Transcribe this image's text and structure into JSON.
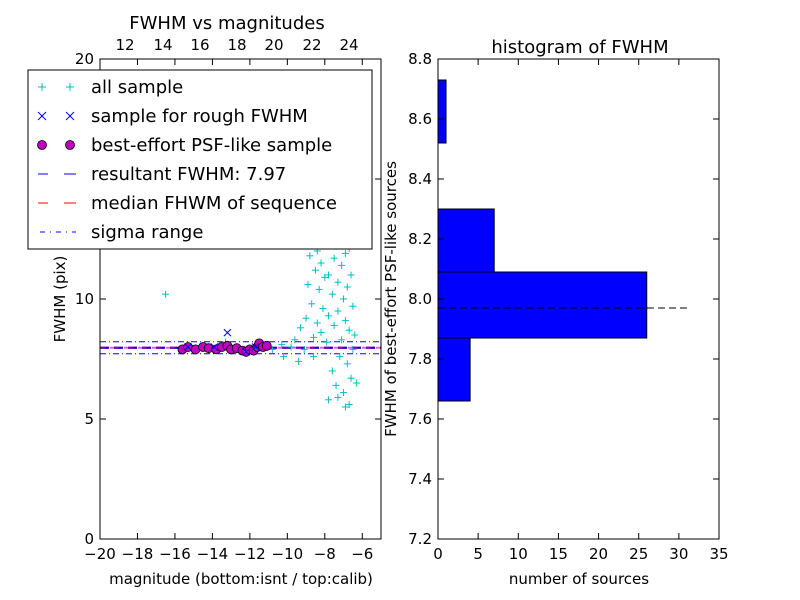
{
  "chart_data": [
    {
      "type": "scatter",
      "title": "FWHM vs magnitudes",
      "xlabel": "magnitude (bottom:isnt / top:calib)",
      "ylabel": "FWHM (pix)",
      "xlim": [
        -20,
        -5
      ],
      "ylim": [
        0,
        20
      ],
      "x_ticks": [
        "−20",
        "−18",
        "−16",
        "−14",
        "−12",
        "−10",
        "−8",
        "−6"
      ],
      "y_ticks": [
        "0",
        "5",
        "10",
        "15",
        "20"
      ],
      "top_axis_ticks": [
        "12",
        "14",
        "16",
        "18",
        "20",
        "22",
        "24"
      ],
      "legend": {
        "placement": "upper-left",
        "entries": [
          {
            "label": "all sample",
            "color": "#00bfbf",
            "marker": "plus"
          },
          {
            "label": "sample for rough FWHM",
            "color": "#0000ff",
            "marker": "x"
          },
          {
            "label": "best-effort PSF-like sample",
            "color": "#bf00bf",
            "marker": "circle"
          },
          {
            "label": "resultant FWHM: 7.97",
            "color": "#0000ff",
            "marker": "dashed"
          },
          {
            "label": "median FHWM of sequence",
            "color": "#ff0000",
            "marker": "dashed"
          },
          {
            "label": "sigma range",
            "color": "#0000ff",
            "marker": "dashdot"
          }
        ]
      },
      "lines": {
        "resultant_fwhm": 7.97,
        "median_fwhm": 7.97,
        "sigma_low": 7.72,
        "sigma_high": 8.22
      },
      "series": [
        {
          "name": "all sample",
          "points": [
            [
              -16.5,
              10.2
            ],
            [
              -15.4,
              8.0
            ],
            [
              -14.5,
              8.0
            ],
            [
              -13.3,
              8.2
            ],
            [
              -12.6,
              7.9
            ],
            [
              -11.9,
              7.9
            ],
            [
              -11.4,
              8.0
            ],
            [
              -10.8,
              7.9
            ],
            [
              -10.3,
              8.1
            ],
            [
              -9.8,
              8.0
            ],
            [
              -10.2,
              7.6
            ],
            [
              -9.6,
              8.3
            ],
            [
              -9.3,
              8.8
            ],
            [
              -9.1,
              7.9
            ],
            [
              -9.0,
              9.2
            ],
            [
              -8.9,
              10.6
            ],
            [
              -8.8,
              11.8
            ],
            [
              -8.7,
              12.6
            ],
            [
              -8.7,
              9.8
            ],
            [
              -8.6,
              8.4
            ],
            [
              -8.5,
              11.2
            ],
            [
              -8.5,
              13.4
            ],
            [
              -8.4,
              12.0
            ],
            [
              -8.4,
              9.0
            ],
            [
              -8.3,
              10.4
            ],
            [
              -8.3,
              12.9
            ],
            [
              -8.2,
              8.6
            ],
            [
              -8.2,
              11.5
            ],
            [
              -8.1,
              13.2
            ],
            [
              -8.1,
              9.6
            ],
            [
              -8.0,
              10.9
            ],
            [
              -8.0,
              12.4
            ],
            [
              -7.9,
              8.2
            ],
            [
              -7.9,
              14.5
            ],
            [
              -7.8,
              11.0
            ],
            [
              -7.8,
              19.4
            ],
            [
              -7.8,
              9.3
            ],
            [
              -7.7,
              12.8
            ],
            [
              -7.7,
              15.6
            ],
            [
              -7.6,
              10.2
            ],
            [
              -7.6,
              13.6
            ],
            [
              -7.6,
              7.0
            ],
            [
              -7.5,
              11.7
            ],
            [
              -7.5,
              16.8
            ],
            [
              -7.5,
              8.9
            ],
            [
              -7.4,
              12.2
            ],
            [
              -7.4,
              14.1
            ],
            [
              -7.4,
              6.4
            ],
            [
              -7.3,
              10.7
            ],
            [
              -7.3,
              18.2
            ],
            [
              -7.3,
              9.5
            ],
            [
              -7.2,
              13.0
            ],
            [
              -7.2,
              15.3
            ],
            [
              -7.2,
              7.6
            ],
            [
              -7.1,
              11.4
            ],
            [
              -7.1,
              17.3
            ],
            [
              -7.1,
              8.3
            ],
            [
              -7.0,
              12.6
            ],
            [
              -7.0,
              10.0
            ],
            [
              -7.0,
              6.1
            ],
            [
              -6.9,
              14.6
            ],
            [
              -6.9,
              9.1
            ],
            [
              -6.9,
              11.9
            ],
            [
              -6.8,
              13.5
            ],
            [
              -6.8,
              7.3
            ],
            [
              -6.8,
              10.5
            ],
            [
              -6.7,
              12.1
            ],
            [
              -6.7,
              8.7
            ],
            [
              -6.7,
              5.6
            ],
            [
              -6.6,
              11.0
            ],
            [
              -6.6,
              6.7
            ],
            [
              -6.5,
              9.7
            ],
            [
              -6.5,
              7.9
            ],
            [
              -6.4,
              8.5
            ],
            [
              -6.3,
              6.5
            ],
            [
              -7.8,
              5.8
            ],
            [
              -7.3,
              5.9
            ],
            [
              -6.9,
              5.5
            ],
            [
              -8.6,
              7.6
            ],
            [
              -9.4,
              7.4
            ]
          ]
        },
        {
          "name": "sample for rough FWHM",
          "points": [
            [
              -13.2,
              8.6
            ],
            [
              -15.3,
              8.0
            ],
            [
              -13.9,
              8.0
            ],
            [
              -12.2,
              7.8
            ],
            [
              -11.7,
              8.0
            ]
          ]
        },
        {
          "name": "best-effort PSF-like sample",
          "points": [
            [
              -15.6,
              7.9
            ],
            [
              -15.3,
              8.0
            ],
            [
              -14.9,
              7.9
            ],
            [
              -14.5,
              8.0
            ],
            [
              -14.2,
              7.95
            ],
            [
              -13.8,
              7.9
            ],
            [
              -13.5,
              8.0
            ],
            [
              -13.2,
              8.05
            ],
            [
              -13.0,
              7.9
            ],
            [
              -12.7,
              7.95
            ],
            [
              -12.4,
              7.85
            ],
            [
              -12.2,
              7.8
            ],
            [
              -12.0,
              7.9
            ],
            [
              -11.8,
              7.85
            ],
            [
              -11.6,
              8.0
            ],
            [
              -11.5,
              8.15
            ],
            [
              -11.3,
              8.0
            ],
            [
              -11.1,
              8.05
            ]
          ]
        }
      ]
    },
    {
      "type": "bar",
      "orientation": "horizontal",
      "title": "histogram of FWHM",
      "xlabel": "number of sources",
      "ylabel": "FWHM of best-effort PSF-like sources",
      "xlim": [
        0,
        35
      ],
      "ylim": [
        7.2,
        8.8
      ],
      "x_ticks": [
        "0",
        "5",
        "10",
        "15",
        "20",
        "25",
        "30",
        "35"
      ],
      "y_ticks": [
        "7.2",
        "7.4",
        "7.6",
        "7.8",
        "8.0",
        "8.2",
        "8.4",
        "8.6",
        "8.8"
      ],
      "bars": [
        {
          "low": 7.66,
          "high": 7.87,
          "count": 4
        },
        {
          "low": 7.87,
          "high": 8.09,
          "count": 26
        },
        {
          "low": 8.09,
          "high": 8.3,
          "count": 7
        },
        {
          "low": 8.52,
          "high": 8.73,
          "count": 1
        }
      ],
      "bar_color": "#0000ff",
      "reference_line": 7.97
    }
  ]
}
